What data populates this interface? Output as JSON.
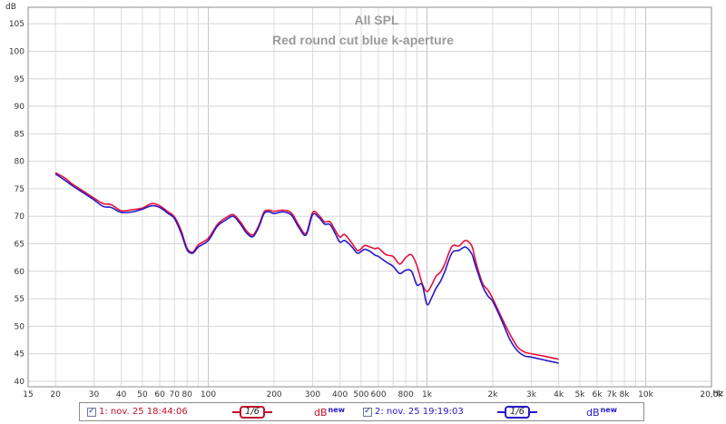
{
  "chart_data": {
    "type": "line",
    "title": "All SPL",
    "subtitle": "Red round cut  blue k-aperture",
    "ylabel": "dB",
    "xunit": "Hz",
    "xscale": "log",
    "xlim": [
      15,
      20000
    ],
    "ylim": [
      39,
      108
    ],
    "grid": true,
    "y_ticks": [
      40,
      45,
      50,
      55,
      60,
      65,
      70,
      75,
      80,
      85,
      90,
      95,
      100,
      105
    ],
    "x_ticks": [
      {
        "v": 15,
        "t": "15"
      },
      {
        "v": 20,
        "t": "20"
      },
      {
        "v": 30,
        "t": "30"
      },
      {
        "v": 40,
        "t": "40"
      },
      {
        "v": 50,
        "t": "50"
      },
      {
        "v": 60,
        "t": "60"
      },
      {
        "v": 70,
        "t": "70"
      },
      {
        "v": 80,
        "t": "80"
      },
      {
        "v": 100,
        "t": "100"
      },
      {
        "v": 200,
        "t": "200"
      },
      {
        "v": 300,
        "t": "300"
      },
      {
        "v": 400,
        "t": "400"
      },
      {
        "v": 500,
        "t": "500"
      },
      {
        "v": 600,
        "t": "600"
      },
      {
        "v": 800,
        "t": "800"
      },
      {
        "v": 1000,
        "t": "1k"
      },
      {
        "v": 2000,
        "t": "2k"
      },
      {
        "v": 3000,
        "t": "3k"
      },
      {
        "v": 4000,
        "t": "4k"
      },
      {
        "v": 5000,
        "t": "5k"
      },
      {
        "v": 6000,
        "t": "6k"
      },
      {
        "v": 7000,
        "t": "7k"
      },
      {
        "v": 8000,
        "t": "8k"
      },
      {
        "v": 10000,
        "t": "10k"
      },
      {
        "v": 20000,
        "t": "20,0k"
      }
    ],
    "series": [
      {
        "name": "1: nov. 25 18:44:06",
        "color": "#e8103c",
        "x": [
          20,
          22,
          24,
          27,
          30,
          33,
          36,
          40,
          45,
          50,
          55,
          60,
          65,
          70,
          75,
          80,
          85,
          90,
          100,
          110,
          120,
          130,
          140,
          150,
          160,
          170,
          180,
          190,
          200,
          220,
          240,
          260,
          280,
          300,
          320,
          340,
          360,
          380,
          400,
          420,
          450,
          480,
          500,
          520,
          550,
          580,
          600,
          650,
          700,
          750,
          800,
          850,
          900,
          950,
          1000,
          1050,
          1100,
          1150,
          1200,
          1300,
          1400,
          1500,
          1600,
          1650,
          1700,
          1800,
          1900,
          2000,
          2200,
          2400,
          2600,
          2800,
          3000,
          3500,
          4000
        ],
        "y": [
          77.9,
          77.0,
          75.8,
          74.5,
          73.3,
          72.3,
          72.1,
          71.0,
          71.2,
          71.5,
          72.3,
          71.9,
          70.9,
          69.9,
          67.5,
          64.2,
          63.5,
          64.8,
          66.0,
          68.5,
          69.7,
          70.3,
          69.0,
          67.3,
          66.6,
          68.3,
          70.8,
          71.1,
          70.9,
          71.1,
          70.6,
          68.3,
          66.9,
          70.7,
          70.2,
          69.0,
          69.0,
          67.5,
          66.2,
          66.7,
          65.3,
          63.8,
          64.1,
          64.7,
          64.4,
          64.1,
          64.2,
          63.0,
          62.7,
          61.3,
          62.5,
          63.0,
          61.0,
          57.8,
          56.3,
          57.5,
          59.1,
          59.8,
          61.1,
          64.5,
          64.6,
          65.6,
          64.7,
          62.7,
          60.7,
          57.7,
          56.6,
          55.0,
          51.5,
          48.5,
          46.2,
          45.3,
          45.0,
          44.5,
          44.0
        ]
      },
      {
        "name": "2: nov. 25 19:19:03",
        "color": "#2618c9",
        "x": [
          20,
          22,
          24,
          27,
          30,
          33,
          36,
          40,
          45,
          50,
          55,
          60,
          65,
          70,
          75,
          80,
          85,
          90,
          100,
          110,
          120,
          130,
          140,
          150,
          160,
          170,
          180,
          190,
          200,
          220,
          240,
          260,
          280,
          300,
          320,
          340,
          360,
          380,
          400,
          420,
          450,
          480,
          500,
          520,
          550,
          580,
          600,
          650,
          700,
          750,
          800,
          850,
          900,
          950,
          1000,
          1050,
          1100,
          1150,
          1200,
          1300,
          1400,
          1500,
          1600,
          1650,
          1700,
          1800,
          1900,
          2000,
          2200,
          2400,
          2600,
          2800,
          3000,
          3500,
          4000
        ],
        "y": [
          77.7,
          76.6,
          75.5,
          74.2,
          73.0,
          71.8,
          71.6,
          70.7,
          70.8,
          71.3,
          71.9,
          71.6,
          70.6,
          69.6,
          67.0,
          63.9,
          63.3,
          64.4,
          65.6,
          68.2,
          69.3,
          70.0,
          68.6,
          66.9,
          66.3,
          68.0,
          70.5,
          70.8,
          70.5,
          70.8,
          70.2,
          67.9,
          66.6,
          70.3,
          69.8,
          68.6,
          68.5,
          66.9,
          65.3,
          65.6,
          64.6,
          63.3,
          63.6,
          64.0,
          63.6,
          62.9,
          62.7,
          61.7,
          60.9,
          59.6,
          60.2,
          60.0,
          57.5,
          57.6,
          54.0,
          55.2,
          56.9,
          58.1,
          59.7,
          63.3,
          63.8,
          64.4,
          63.2,
          61.6,
          60.0,
          57.2,
          55.5,
          54.5,
          51.0,
          47.5,
          45.5,
          44.6,
          44.4,
          43.8,
          43.3
        ]
      }
    ]
  },
  "legend": {
    "items": [
      {
        "label": "1: nov. 25 18:44:06",
        "smoothing": "1/6",
        "db_prefix": "dB",
        "db_suffix": "new",
        "color": "#e8103c",
        "checked": "✓"
      },
      {
        "label": "2: nov. 25 19:19:03",
        "smoothing": "1/6",
        "db_prefix": "dB",
        "db_suffix": "new",
        "color": "#2618c9",
        "checked": "✓"
      }
    ]
  }
}
